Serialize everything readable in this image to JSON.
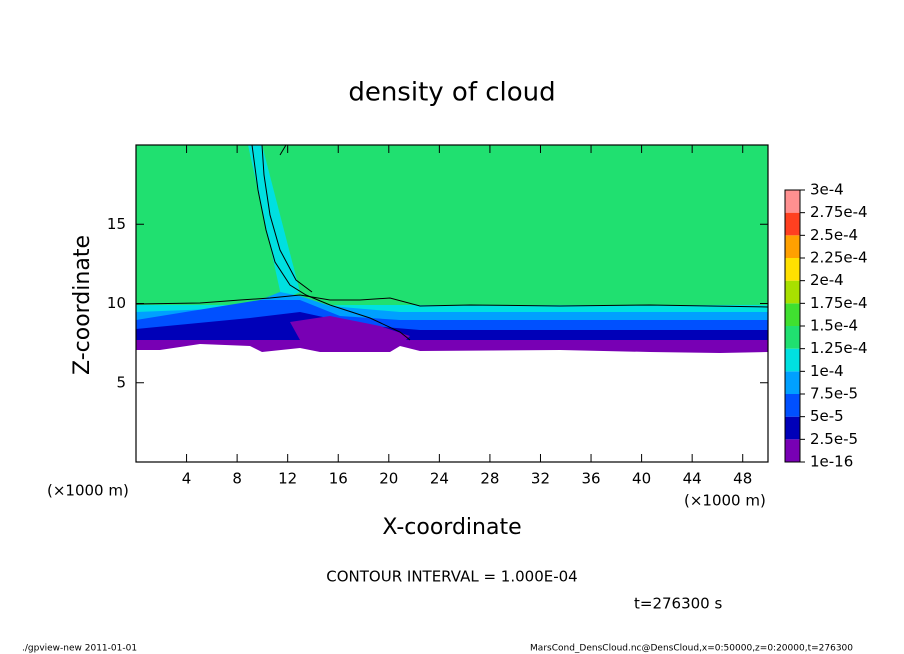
{
  "chart_data": {
    "type": "contour",
    "title": "density of cloud",
    "xlabel": "X-coordinate",
    "ylabel": "Z-coordinate",
    "xunit": "(×1000 m)",
    "yunit": "(×1000 m)",
    "xlim": [
      0,
      50
    ],
    "xticks": [
      4,
      8,
      12,
      16,
      20,
      24,
      28,
      32,
      36,
      40,
      44,
      48
    ],
    "ylim": [
      0,
      20
    ],
    "yticks": [
      5,
      10,
      15
    ],
    "colorbar": {
      "levels": [
        1e-16,
        {
          "value": 2.5e-05,
          "label": "2.5e-5"
        },
        {
          "value": 5e-05,
          "label": "5e-5"
        },
        {
          "value": 7.5e-05,
          "label": "7.5e-5"
        },
        {
          "value": 0.0001,
          "label": "1e-4"
        },
        {
          "value": 0.000125,
          "label": "1.25e-4"
        },
        {
          "value": 0.00015,
          "label": "1.5e-4"
        },
        {
          "value": 0.000175,
          "label": "1.75e-4"
        },
        {
          "value": 0.0002,
          "label": "2e-4"
        },
        {
          "value": 0.000225,
          "label": "2.25e-4"
        },
        {
          "value": 0.00025,
          "label": "2.5e-4"
        },
        {
          "value": 0.000275,
          "label": "2.75e-4"
        },
        {
          "value": 0.0003,
          "label": "3e-4"
        }
      ],
      "colors": [
        "#7800b4",
        "#0000b8",
        "#0050ff",
        "#00a0ff",
        "#00e0e0",
        "#20e070",
        "#40e030",
        "#a8e000",
        "#ffe000",
        "#ffa000",
        "#ff4020",
        "#ff9090"
      ]
    },
    "contour_interval": "CONTOUR INTERVAL = 1.000E-04",
    "time_label": "t=276300 s",
    "footer_left": "./gpview-new   2011-01-01",
    "footer_right": "MarsCond_DensCloud.nc@DensCloud,x=0:50000,z=0:20000,t=276300"
  }
}
